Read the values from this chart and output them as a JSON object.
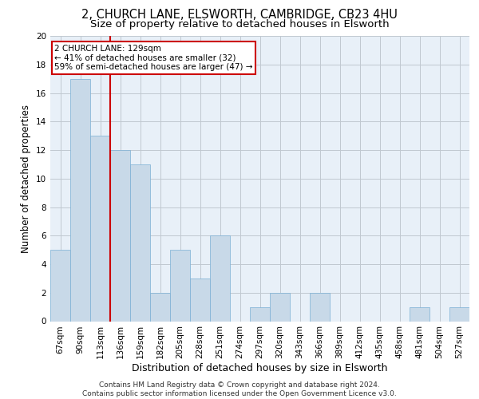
{
  "title1": "2, CHURCH LANE, ELSWORTH, CAMBRIDGE, CB23 4HU",
  "title2": "Size of property relative to detached houses in Elsworth",
  "xlabel": "Distribution of detached houses by size in Elsworth",
  "ylabel": "Number of detached properties",
  "categories": [
    "67sqm",
    "90sqm",
    "113sqm",
    "136sqm",
    "159sqm",
    "182sqm",
    "205sqm",
    "228sqm",
    "251sqm",
    "274sqm",
    "297sqm",
    "320sqm",
    "343sqm",
    "366sqm",
    "389sqm",
    "412sqm",
    "435sqm",
    "458sqm",
    "481sqm",
    "504sqm",
    "527sqm"
  ],
  "values": [
    5,
    17,
    13,
    12,
    11,
    2,
    5,
    3,
    6,
    0,
    1,
    2,
    0,
    2,
    0,
    0,
    0,
    0,
    1,
    0,
    1
  ],
  "bar_color": "#c8d9e8",
  "bar_edge_color": "#7bafd4",
  "subject_line_color": "#cc0000",
  "annotation_text": "2 CHURCH LANE: 129sqm\n← 41% of detached houses are smaller (32)\n59% of semi-detached houses are larger (47) →",
  "annotation_box_color": "#cc0000",
  "ylim": [
    0,
    20
  ],
  "yticks": [
    0,
    2,
    4,
    6,
    8,
    10,
    12,
    14,
    16,
    18,
    20
  ],
  "grid_color": "#c0c8d0",
  "footnote": "Contains HM Land Registry data © Crown copyright and database right 2024.\nContains public sector information licensed under the Open Government Licence v3.0.",
  "bg_color": "#e8f0f8",
  "title1_fontsize": 10.5,
  "title2_fontsize": 9.5,
  "xlabel_fontsize": 9,
  "ylabel_fontsize": 8.5,
  "tick_fontsize": 7.5,
  "footnote_fontsize": 6.5
}
